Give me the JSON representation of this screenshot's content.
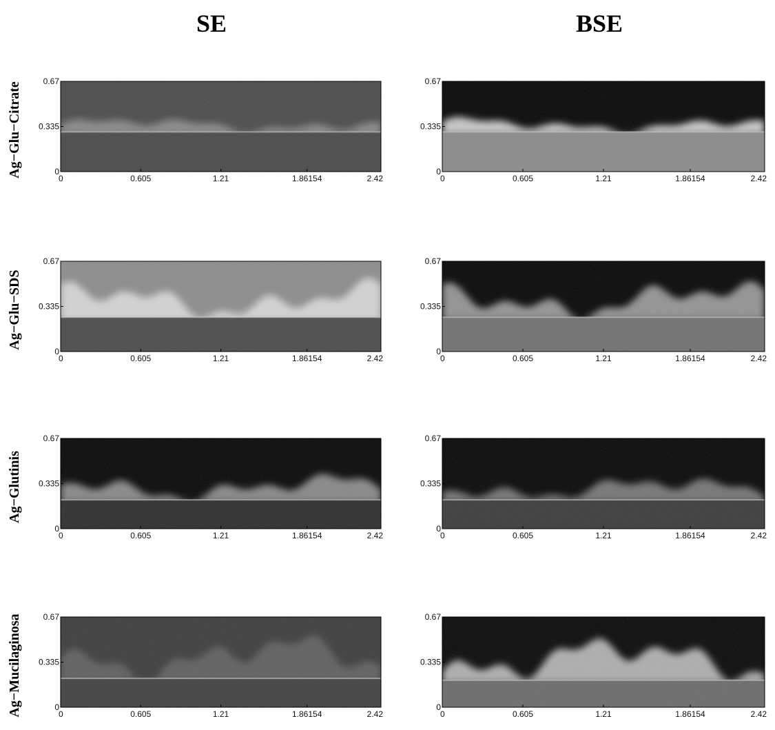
{
  "column_titles": [
    "SE",
    "BSE"
  ],
  "row_labels": [
    "Ag−Glu−Citrate",
    "Ag−Glu−SDS",
    "Ag−Glutinis",
    "Ag−Mucilaginosa"
  ],
  "axes": {
    "xlim": [
      0,
      2.42
    ],
    "ylim": [
      0,
      0.67
    ],
    "xticks": [
      0,
      0.605,
      1.21,
      1.86154,
      2.42
    ],
    "yticks": [
      0,
      0.335,
      0.67
    ]
  }
}
